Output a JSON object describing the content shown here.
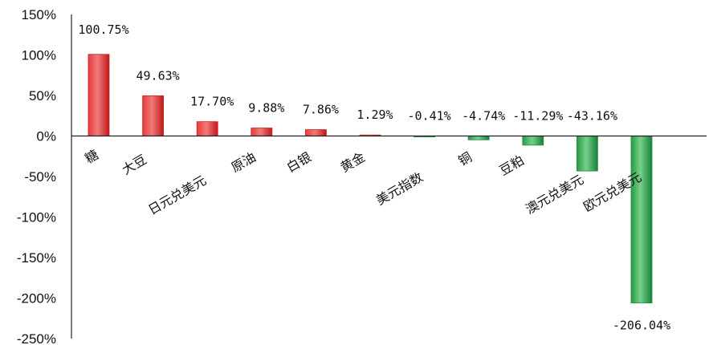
{
  "chart_data": {
    "type": "bar",
    "title": "",
    "xlabel": "",
    "ylabel": "",
    "ylim": [
      -250,
      150
    ],
    "yticks": [
      150,
      100,
      50,
      0,
      -50,
      -100,
      -150,
      -200,
      -250
    ],
    "ytick_labels": [
      "150%",
      "100%",
      "50%",
      "0%",
      "-50%",
      "-100%",
      "-150%",
      "-200%",
      "-250%"
    ],
    "grid": false,
    "legend": "none",
    "categories": [
      "糖",
      "大豆",
      "日元兑美元",
      "原油",
      "白银",
      "黄金",
      "美元指数",
      "铜",
      "豆粕",
      "澳元兑美元",
      "欧元兑美元"
    ],
    "values": [
      100.75,
      49.63,
      17.7,
      9.88,
      7.86,
      1.29,
      -0.41,
      -4.74,
      -11.29,
      -43.16,
      -206.04
    ],
    "data_labels": [
      "100.75%",
      "49.63%",
      "17.70%",
      "9.88%",
      "7.86%",
      "1.29%",
      "-0.41%",
      "-4.74%",
      "-11.29%",
      "-43.16%",
      "-206.04%"
    ],
    "colors": {
      "positive": "#d42020",
      "positive_light": "#f07070",
      "negative": "#1f8f3a",
      "negative_light": "#6fcf85",
      "axis": "#222222"
    }
  }
}
